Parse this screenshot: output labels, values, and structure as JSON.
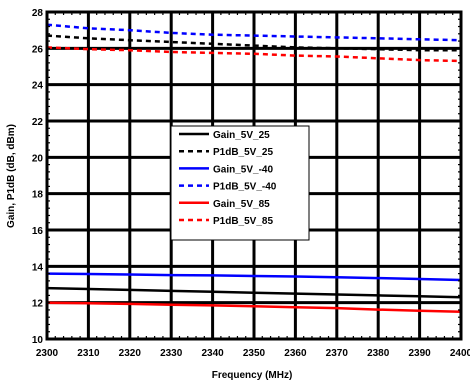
{
  "chart_data": {
    "type": "line",
    "title": "",
    "xlabel": "Frequency (MHz)",
    "ylabel": "Gain, P1dB (dB, dBm)",
    "xlim": [
      2300,
      2400
    ],
    "ylim": [
      10,
      28
    ],
    "x_ticks": [
      "2300",
      "2310",
      "2320",
      "2330",
      "2340",
      "2350",
      "2360",
      "2370",
      "2380",
      "2390",
      "2400"
    ],
    "y_ticks": [
      "10",
      "12",
      "14",
      "16",
      "18",
      "20",
      "22",
      "24",
      "26",
      "28"
    ],
    "grid": true,
    "legend_position": "center",
    "x": [
      2300,
      2310,
      2320,
      2330,
      2340,
      2350,
      2360,
      2370,
      2380,
      2390,
      2400
    ],
    "series": [
      {
        "name": "Gain_5V_25",
        "color": "#000000",
        "dashed": false,
        "values": [
          12.8,
          12.75,
          12.7,
          12.65,
          12.6,
          12.55,
          12.5,
          12.45,
          12.4,
          12.35,
          12.3
        ]
      },
      {
        "name": "P1dB_5V_25",
        "color": "#000000",
        "dashed": true,
        "values": [
          26.7,
          26.55,
          26.45,
          26.35,
          26.25,
          26.15,
          26.05,
          26.0,
          25.95,
          25.9,
          25.9
        ]
      },
      {
        "name": "Gain_5V_-40",
        "color": "#0000ff",
        "dashed": false,
        "values": [
          13.6,
          13.58,
          13.55,
          13.52,
          13.5,
          13.47,
          13.44,
          13.4,
          13.35,
          13.3,
          13.25
        ]
      },
      {
        "name": "P1dB_5V_-40",
        "color": "#0000ff",
        "dashed": true,
        "values": [
          27.3,
          27.1,
          27.0,
          26.85,
          26.75,
          26.7,
          26.65,
          26.6,
          26.55,
          26.5,
          26.45
        ]
      },
      {
        "name": "Gain_5V_85",
        "color": "#ff0000",
        "dashed": false,
        "values": [
          12.0,
          11.97,
          11.93,
          11.89,
          11.85,
          11.8,
          11.75,
          11.7,
          11.62,
          11.55,
          11.5
        ]
      },
      {
        "name": "P1dB_5V_85",
        "color": "#ff0000",
        "dashed": true,
        "values": [
          26.05,
          25.95,
          25.9,
          25.8,
          25.75,
          25.7,
          25.6,
          25.55,
          25.45,
          25.35,
          25.3
        ]
      }
    ]
  }
}
